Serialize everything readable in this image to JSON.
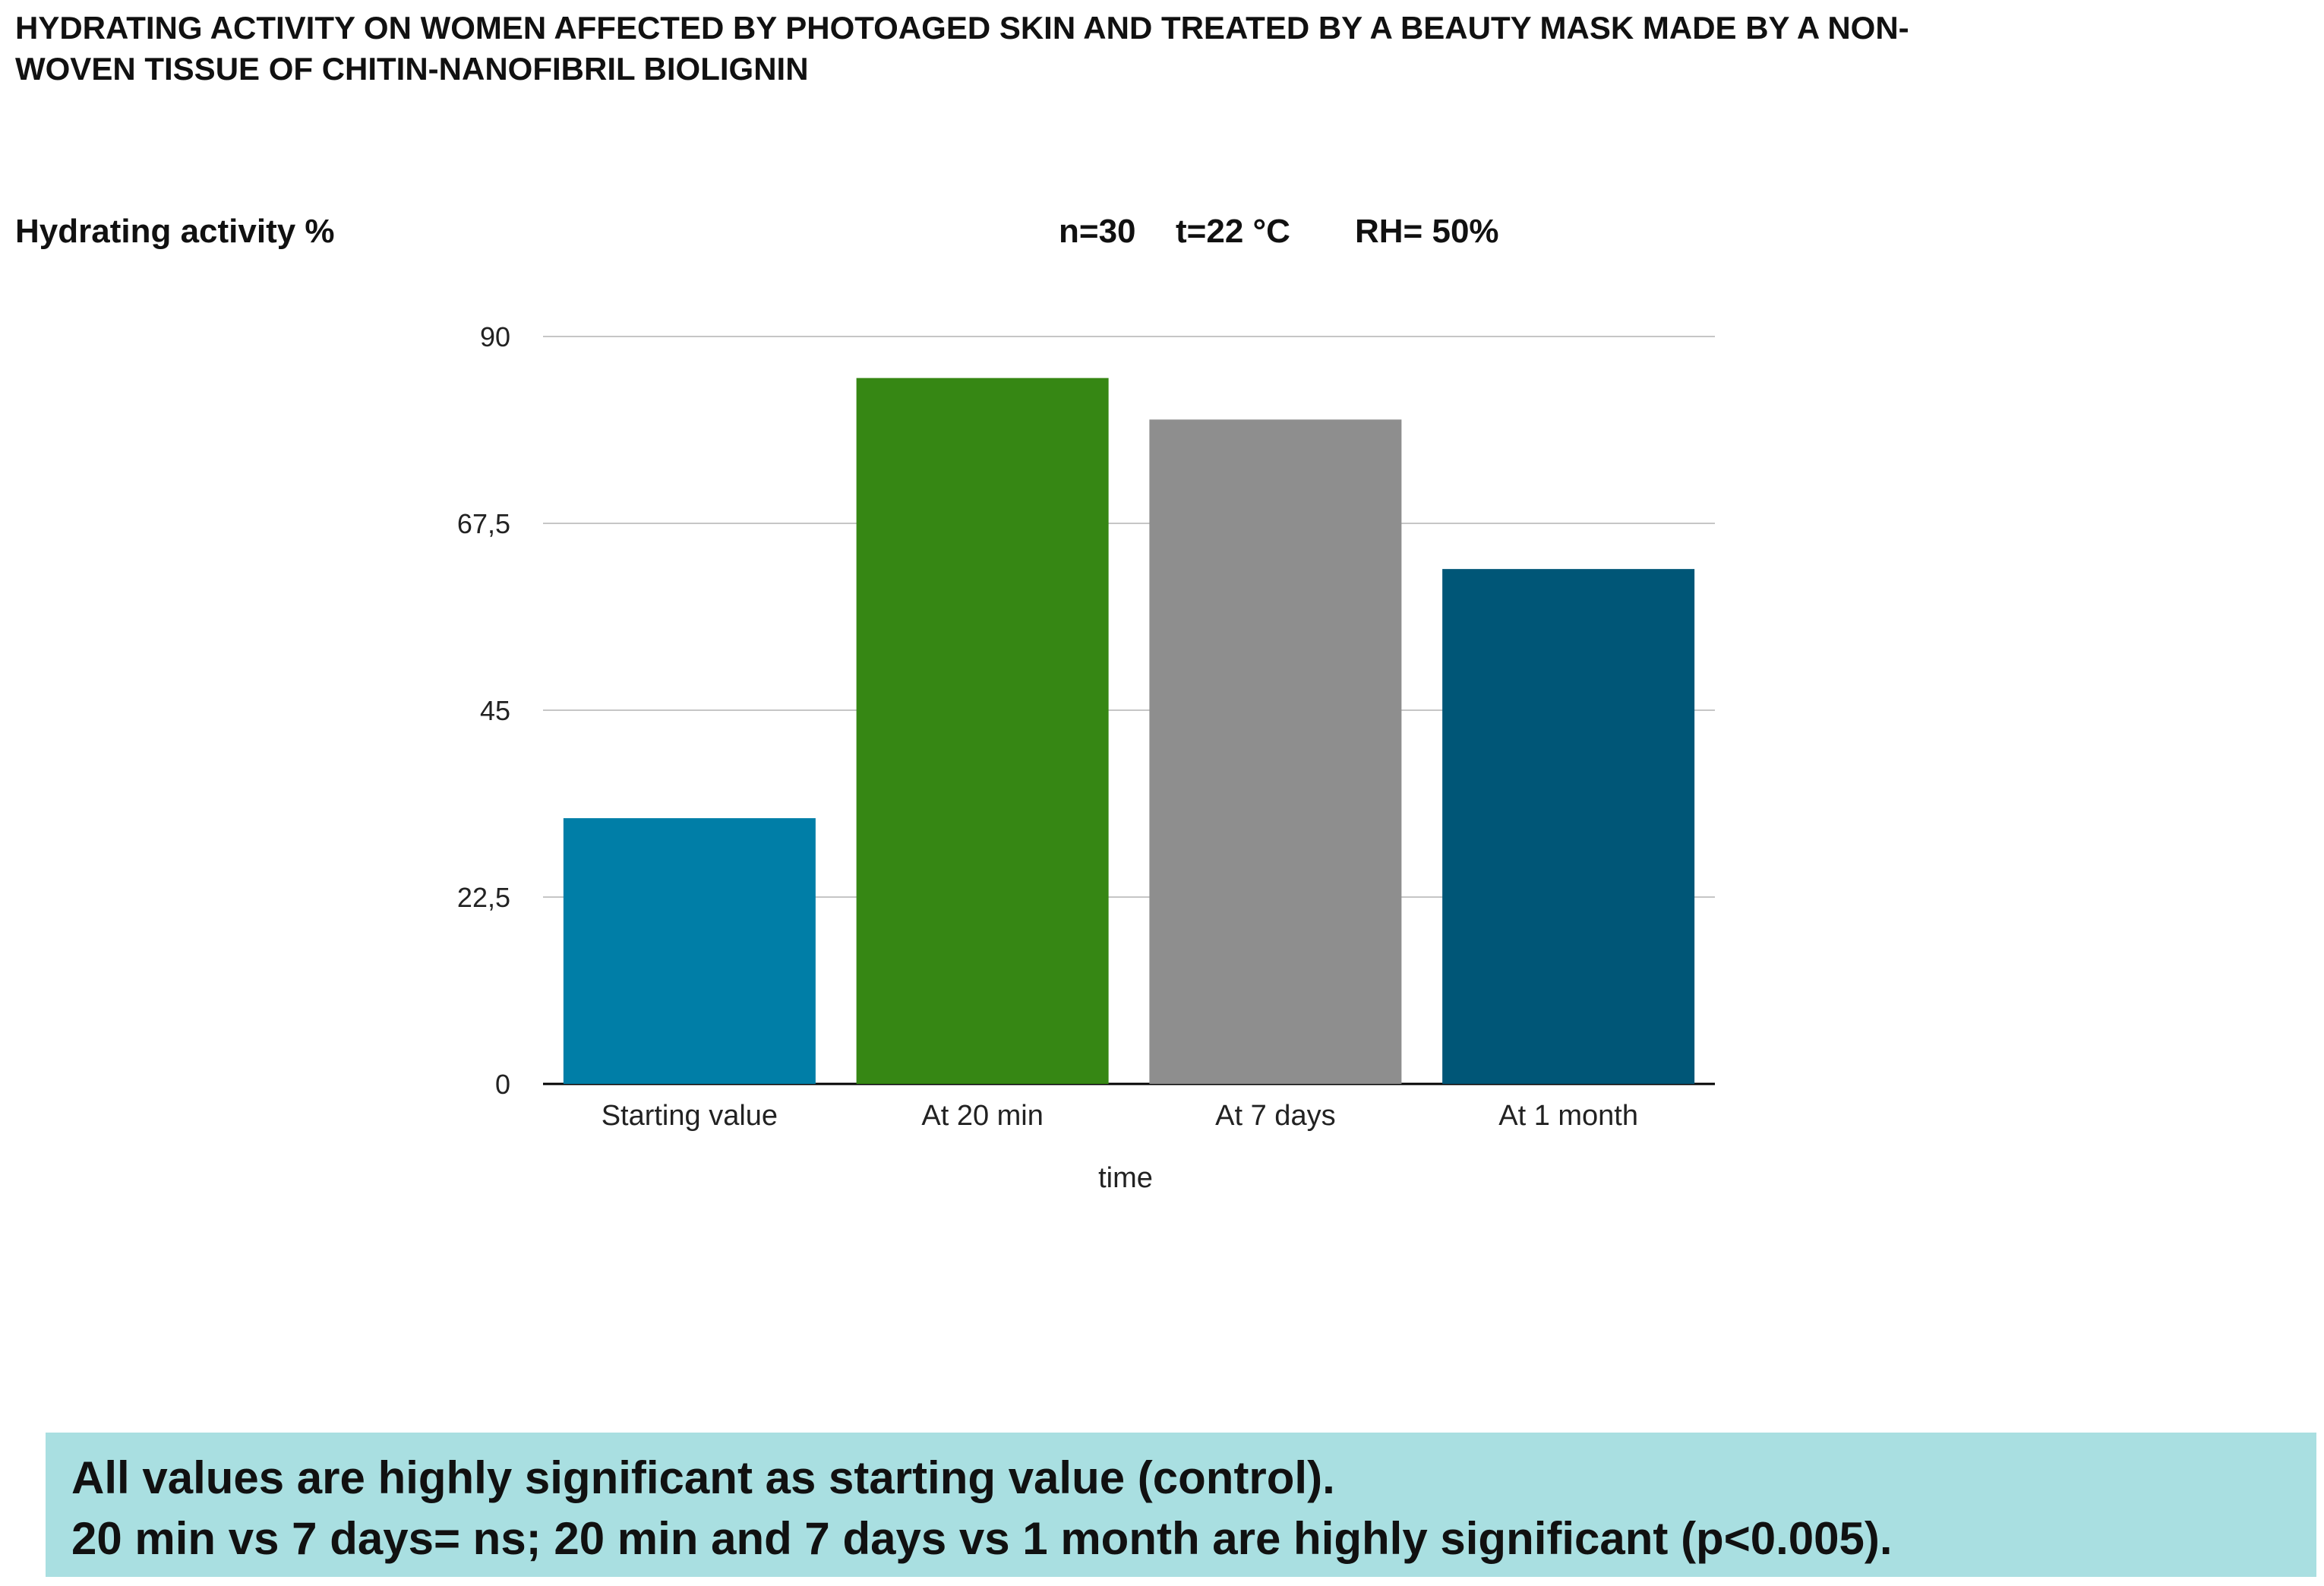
{
  "title": {
    "line1": "HYDRATING ACTIVITY ON WOMEN AFFECTED BY PHOTOAGED SKIN AND TREATED BY A BEAUTY MASK MADE BY A NON-",
    "line2": "WOVEN TISSUE OF CHITIN-NANOFIBRIL BIOLIGNIN"
  },
  "conditions": {
    "n": "n=30",
    "t": "t=22 °C",
    "rh": "RH= 50%"
  },
  "note": {
    "line1": "All values are highly significant as starting value (control).",
    "line2": "20 min vs 7 days= ns; 20 min and 7 days vs 1 month are highly significant (p<0.005)."
  },
  "chart_data": {
    "type": "bar",
    "ylabel": "Hydrating activity %",
    "xlabel": "time",
    "categories": [
      "Starting value",
      "At 20 min",
      "At 7 days",
      "At 1 month"
    ],
    "values": [
      32,
      85,
      80,
      62
    ],
    "bar_colors": [
      "#007ea7",
      "#368714",
      "#8e8e8e",
      "#005677"
    ],
    "ylim": [
      0,
      90
    ],
    "yticks": [
      {
        "value": 0,
        "label": "0"
      },
      {
        "value": 22.5,
        "label": "22,5"
      },
      {
        "value": 45,
        "label": "45"
      },
      {
        "value": 67.5,
        "label": "67,5"
      },
      {
        "value": 90,
        "label": "90"
      }
    ],
    "grid": true,
    "legend": "none"
  }
}
